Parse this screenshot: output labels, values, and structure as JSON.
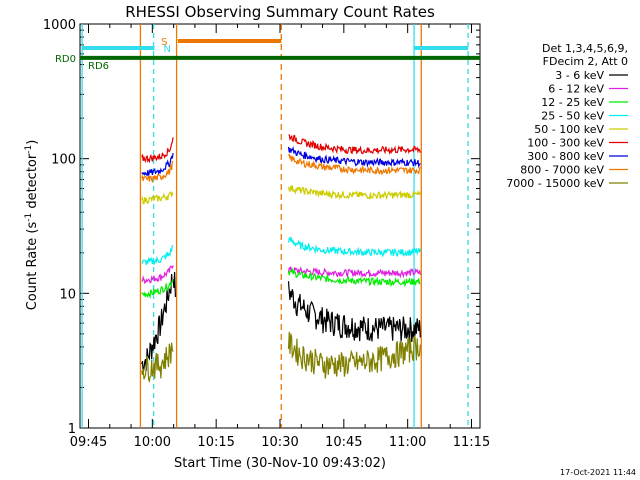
{
  "chart_data": {
    "type": "line",
    "title": "RHESSI Observing Summary Count Rates",
    "xlabel": "Start Time (30-Nov-10 09:43:02)",
    "ylabel_main": "Count Rate (s",
    "ylabel_sup1": "-1",
    "ylabel_mid": " detector",
    "ylabel_sup2": "-1",
    "ylabel_end": ")",
    "yscale": "log",
    "ylim": [
      1,
      1000
    ],
    "xlim_min": [
      -2,
      92
    ],
    "y_ticks": [
      {
        "value": 1,
        "label": "1"
      },
      {
        "value": 10,
        "label": "10"
      },
      {
        "value": 100,
        "label": "100"
      },
      {
        "value": 1000,
        "label": "1000"
      }
    ],
    "x_ticks": [
      {
        "value": 0,
        "label": "09:45"
      },
      {
        "value": 15,
        "label": "10:00"
      },
      {
        "value": 30,
        "label": "10:15"
      },
      {
        "value": 45,
        "label": "10:30"
      },
      {
        "value": 60,
        "label": "10:45"
      },
      {
        "value": 75,
        "label": "11:00"
      },
      {
        "value": 90,
        "label": "11:15"
      }
    ],
    "legend_header": [
      "Det 1,3,4,5,6,9,",
      "FDecim 2, Att 0"
    ],
    "series": [
      {
        "name": "3 - 6 keV",
        "color": "#000000",
        "seg1": [
          [
            12.5,
            3.0
          ],
          [
            14,
            3.4
          ],
          [
            15.5,
            4.5
          ],
          [
            17,
            6
          ],
          [
            18.5,
            9
          ],
          [
            20,
            14
          ],
          [
            20.5,
            10
          ]
        ],
        "seg2": [
          [
            47,
            10.5
          ],
          [
            49,
            8.5
          ],
          [
            52,
            7.2
          ],
          [
            56,
            6.3
          ],
          [
            60,
            5.9
          ],
          [
            65,
            5.6
          ],
          [
            70,
            5.5
          ],
          [
            75,
            5.5
          ],
          [
            78,
            5.5
          ]
        ]
      },
      {
        "name": "6 - 12 keV",
        "color": "#e020e0",
        "seg1": [
          [
            12.5,
            12.5
          ],
          [
            15,
            12.8
          ],
          [
            17,
            13.2
          ],
          [
            19,
            14.5
          ],
          [
            20,
            17
          ]
        ],
        "seg2": [
          [
            47,
            15
          ],
          [
            50,
            14.6
          ],
          [
            55,
            14.3
          ],
          [
            60,
            14.2
          ],
          [
            65,
            14.2
          ],
          [
            70,
            14.2
          ],
          [
            75,
            14.2
          ],
          [
            78,
            14.3
          ]
        ]
      },
      {
        "name": "12 - 25 keV",
        "color": "#00ee00",
        "seg1": [
          [
            12.5,
            9.8
          ],
          [
            15,
            10.1
          ],
          [
            17,
            10.6
          ],
          [
            19,
            11.5
          ],
          [
            20,
            13
          ]
        ],
        "seg2": [
          [
            47,
            14.5
          ],
          [
            50,
            13.6
          ],
          [
            55,
            12.9
          ],
          [
            60,
            12.5
          ],
          [
            65,
            12.3
          ],
          [
            70,
            12.2
          ],
          [
            75,
            12.2
          ],
          [
            78,
            12.3
          ]
        ]
      },
      {
        "name": "25 - 50 keV",
        "color": "#00eeee",
        "seg1": [
          [
            12.5,
            17
          ],
          [
            15,
            17.2
          ],
          [
            17,
            17.8
          ],
          [
            19,
            19.5
          ],
          [
            20,
            23
          ]
        ],
        "seg2": [
          [
            47,
            25
          ],
          [
            50,
            22.5
          ],
          [
            55,
            21
          ],
          [
            60,
            20.5
          ],
          [
            65,
            20.2
          ],
          [
            70,
            20.1
          ],
          [
            75,
            20.2
          ],
          [
            78,
            20.4
          ]
        ]
      },
      {
        "name": "50 - 100 keV",
        "color": "#cccc00",
        "seg1": [
          [
            12.5,
            49
          ],
          [
            15,
            50
          ],
          [
            17,
            51
          ],
          [
            19,
            53
          ],
          [
            20,
            57
          ]
        ],
        "seg2": [
          [
            47,
            61
          ],
          [
            50,
            58
          ],
          [
            55,
            55
          ],
          [
            60,
            54
          ],
          [
            65,
            53.5
          ],
          [
            70,
            53.5
          ],
          [
            75,
            54
          ],
          [
            78,
            54
          ]
        ]
      },
      {
        "name": "100 - 300 keV",
        "color": "#e00000",
        "seg1": [
          [
            12.5,
            100
          ],
          [
            15,
            101
          ],
          [
            17,
            104
          ],
          [
            19,
            115
          ],
          [
            20,
            145
          ]
        ],
        "seg2": [
          [
            47,
            148
          ],
          [
            50,
            133
          ],
          [
            55,
            122
          ],
          [
            60,
            117
          ],
          [
            65,
            115
          ],
          [
            70,
            116
          ],
          [
            75,
            117
          ],
          [
            78,
            116
          ]
        ]
      },
      {
        "name": "300 - 800 keV",
        "color": "#0000e0",
        "seg1": [
          [
            12.5,
            78
          ],
          [
            15,
            79
          ],
          [
            17,
            82
          ],
          [
            19,
            92
          ],
          [
            20,
            112
          ]
        ],
        "seg2": [
          [
            47,
            118
          ],
          [
            50,
            107
          ],
          [
            55,
            99
          ],
          [
            60,
            96
          ],
          [
            65,
            94
          ],
          [
            70,
            94
          ],
          [
            75,
            94
          ],
          [
            78,
            93
          ]
        ]
      },
      {
        "name": "800 - 7000 keV",
        "color": "#ee7700",
        "seg1": [
          [
            12.5,
            70
          ],
          [
            15,
            71
          ],
          [
            17,
            73
          ],
          [
            19,
            80
          ],
          [
            20,
            95
          ]
        ],
        "seg2": [
          [
            47,
            102
          ],
          [
            50,
            93
          ],
          [
            55,
            87
          ],
          [
            60,
            84
          ],
          [
            65,
            82
          ],
          [
            70,
            82
          ],
          [
            75,
            82
          ],
          [
            78,
            82
          ]
        ]
      },
      {
        "name": "7000 - 15000 keV",
        "color": "#808000",
        "seg1": [
          [
            12.5,
            2.8
          ],
          [
            15,
            2.9
          ],
          [
            17,
            3.0
          ],
          [
            19,
            3.6
          ],
          [
            20,
            4.2
          ]
        ],
        "seg2": [
          [
            47,
            4.3
          ],
          [
            50,
            3.5
          ],
          [
            55,
            3.0
          ],
          [
            60,
            3.0
          ],
          [
            65,
            3.1
          ],
          [
            70,
            3.4
          ],
          [
            75,
            3.8
          ],
          [
            78,
            4.2
          ]
        ]
      }
    ],
    "rd_levels": {
      "rd0_label": "RD0",
      "rd6_label": "RD6",
      "rd0_value": 560
    },
    "markers": {
      "s_label": "S",
      "n_label": "N",
      "cyan_solid_x": [
        -1.5,
        76.5
      ],
      "cyan_dashed_x": [
        15.3,
        89.2
      ],
      "orange_solid_x": [
        12.2,
        20.7,
        78.2
      ],
      "orange_dashed_x": [
        45.3
      ],
      "cyan_bars": [
        [
          -1.5,
          15.5
        ],
        [
          76.5,
          89.2
        ]
      ],
      "orange_bar": [
        21,
        45.3
      ]
    }
  },
  "timestamp": "17-Oct-2021 11:44"
}
